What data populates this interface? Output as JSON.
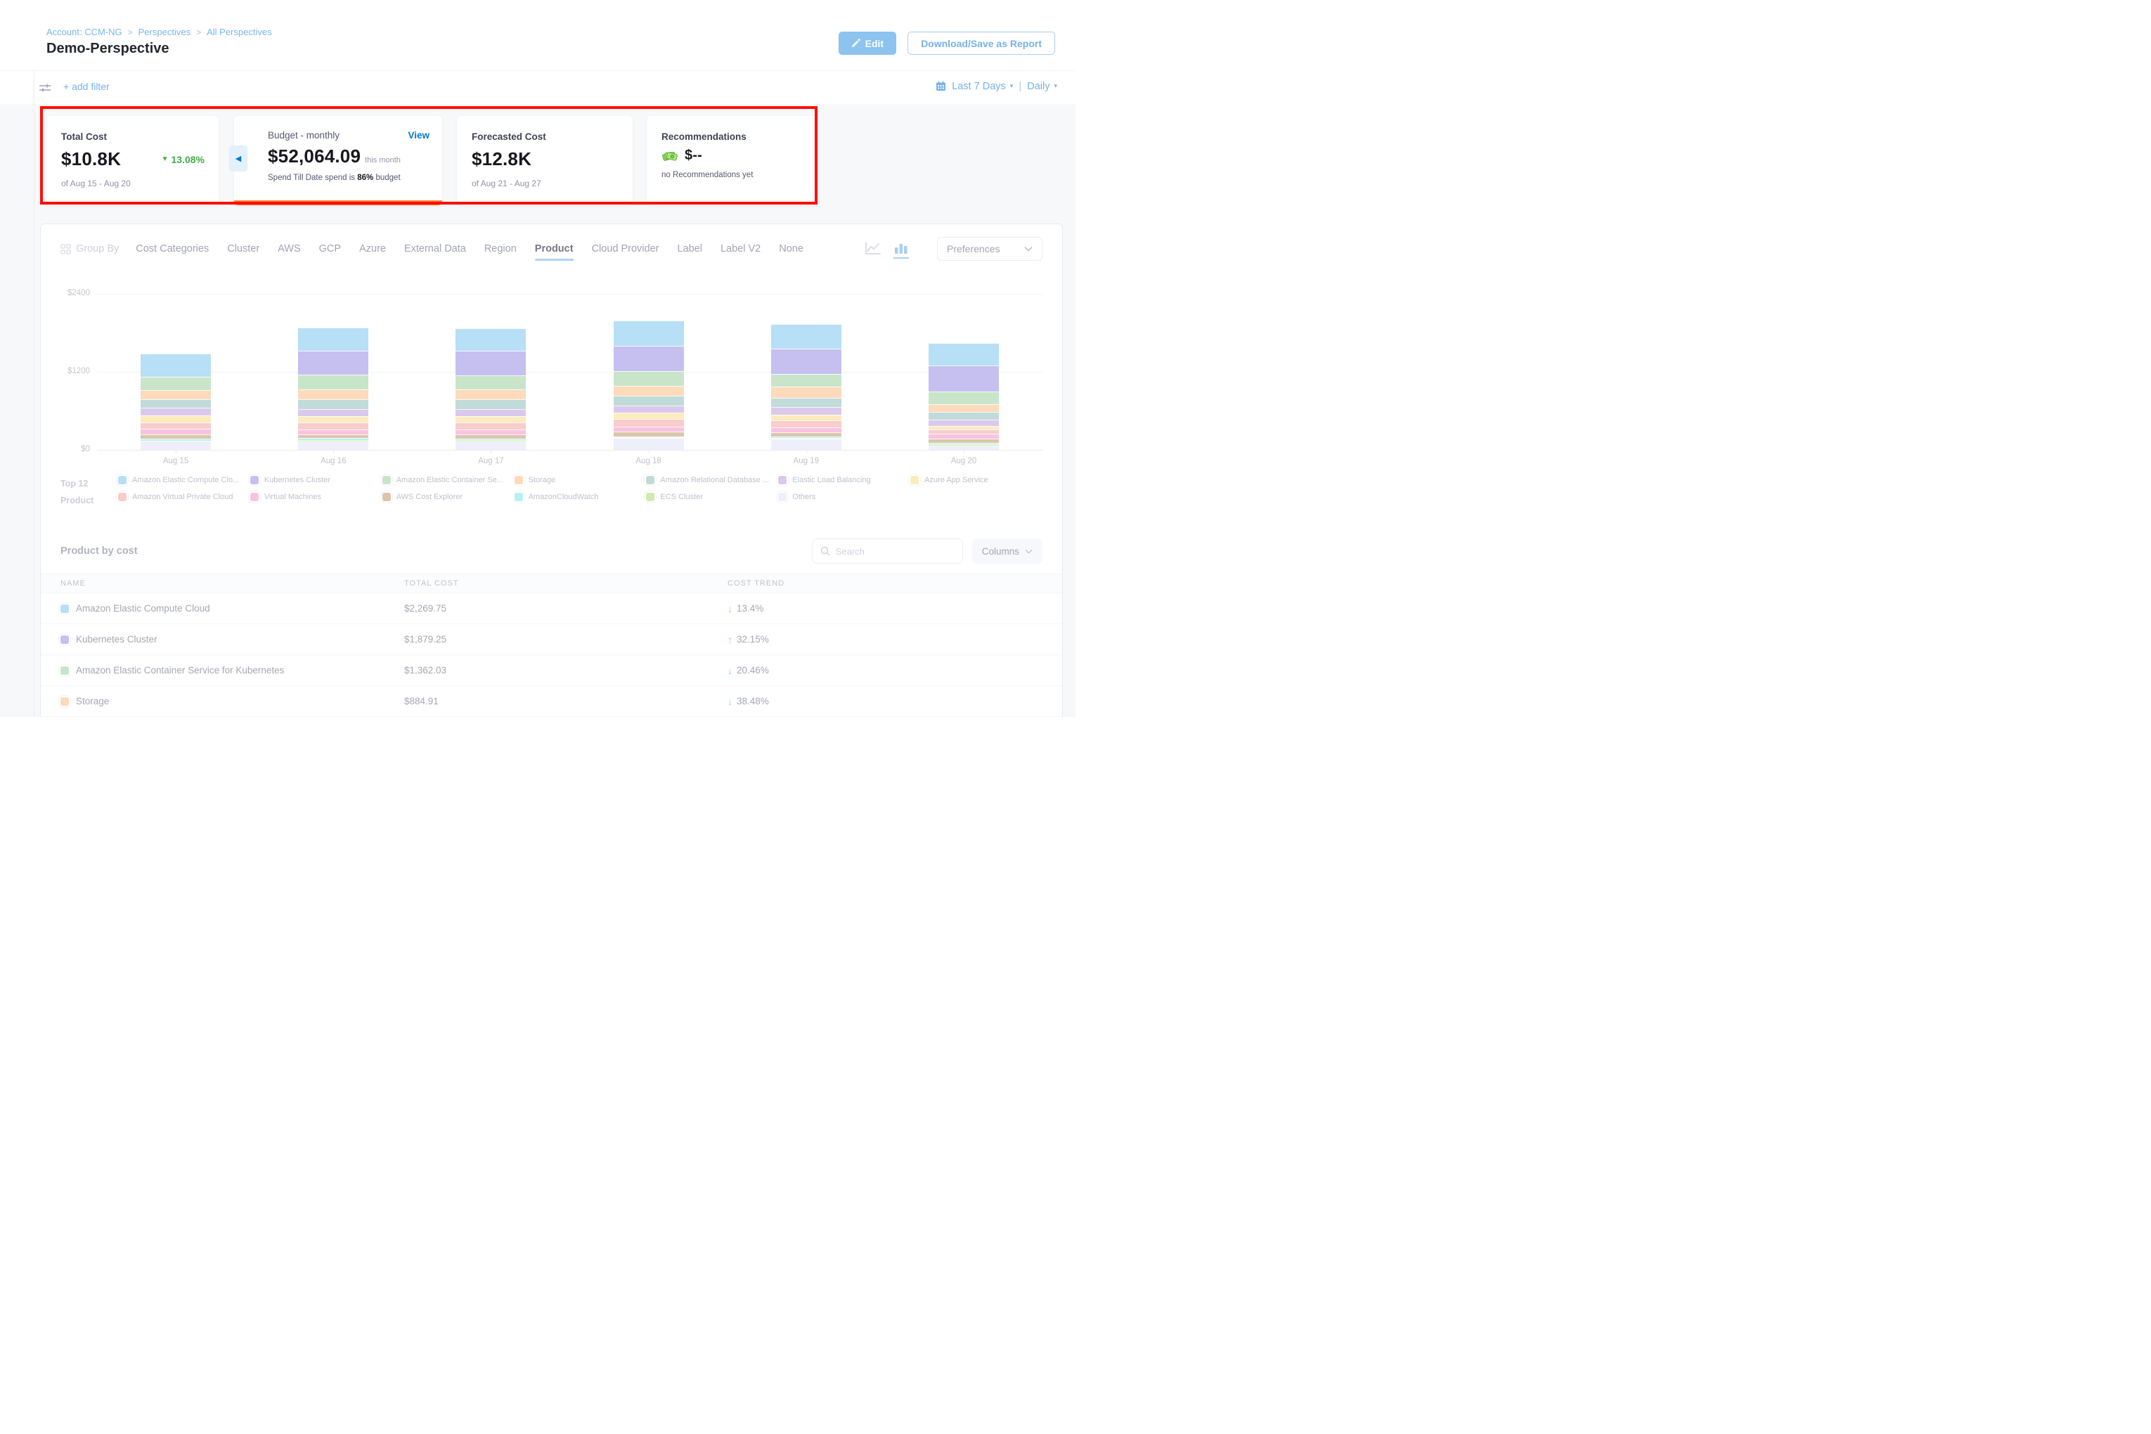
{
  "breadcrumb": {
    "items": [
      "Account: CCM-NG",
      "Perspectives",
      "All Perspectives"
    ],
    "separator": ">"
  },
  "page_title": "Demo-Perspective",
  "header_actions": {
    "edit": "Edit",
    "download": "Download/Save as Report"
  },
  "filter_bar": {
    "add_filter": "+ add filter",
    "time_range": "Last 7 Days",
    "granularity": "Daily",
    "caret": "▾",
    "pipe": "|"
  },
  "summary_cards": {
    "total_cost": {
      "label": "Total Cost",
      "value": "$10.8K",
      "trend_arrow": "▼",
      "trend": "13.08%",
      "period": "of Aug 15 - Aug 20"
    },
    "budget": {
      "label": "Budget - monthly",
      "action": "View",
      "value": "$52,064.09",
      "value_suffix": "this month",
      "status_prefix": "Spend Till Date spend is",
      "status_pct": "86%",
      "status_suffix": "budget",
      "back_arrow": "◀"
    },
    "forecasted": {
      "label": "Forecasted Cost",
      "value": "$12.8K",
      "period": "of Aug 21 - Aug 27"
    },
    "recommendations": {
      "label": "Recommendations",
      "value": "$--",
      "note": "no Recommendations yet"
    }
  },
  "group_by": {
    "label": "Group By",
    "tabs": [
      "Cost Categories",
      "Cluster",
      "AWS",
      "GCP",
      "Azure",
      "External Data",
      "Region",
      "Product",
      "Cloud Provider",
      "Label",
      "Label V2",
      "None"
    ],
    "active": "Product"
  },
  "chart_controls": {
    "preferences": "Preferences"
  },
  "chart_data": {
    "type": "bar",
    "stacked": true,
    "title": "Perspective daily cost grouped by Product",
    "categories": [
      "Aug 15",
      "Aug 16",
      "Aug 17",
      "Aug 18",
      "Aug 19",
      "Aug 20"
    ],
    "series": [
      {
        "name": "Amazon Elastic Compute Cloud",
        "color": "#8ccdf2",
        "values": [
          360,
          355,
          350,
          395,
          380,
          350
        ]
      },
      {
        "name": "Kubernetes Cluster",
        "color": "#a39ae8",
        "values": [
          0,
          370,
          375,
          380,
          385,
          400
        ]
      },
      {
        "name": "Amazon Elastic Container Service for Kubernetes",
        "color": "#a8d6ab",
        "values": [
          205,
          225,
          225,
          230,
          200,
          195
        ]
      },
      {
        "name": "Storage",
        "color": "#fcc491",
        "values": [
          135,
          155,
          150,
          150,
          165,
          120
        ]
      },
      {
        "name": "Amazon Relational Database Service",
        "color": "#9cc5c5",
        "values": [
          135,
          145,
          145,
          150,
          145,
          120
        ]
      },
      {
        "name": "Elastic Load Balancing",
        "color": "#c4a9e3",
        "values": [
          115,
          110,
          110,
          110,
          115,
          95
        ]
      },
      {
        "name": "Azure App Service",
        "color": "#fbdf94",
        "values": [
          105,
          100,
          100,
          105,
          90,
          50
        ]
      },
      {
        "name": "Amazon Virtual Private Cloud",
        "color": "#f5b0ac",
        "values": [
          105,
          110,
          110,
          110,
          105,
          70
        ]
      },
      {
        "name": "Virtual Machines",
        "color": "#f59fd0",
        "values": [
          80,
          70,
          75,
          80,
          85,
          70
        ]
      },
      {
        "name": "AWS Cost Explorer",
        "color": "#c6a477",
        "values": [
          70,
          55,
          60,
          70,
          65,
          70
        ]
      },
      {
        "name": "AmazonCloudWatch",
        "color": "#8ce8e8",
        "values": [
          30,
          30,
          25,
          20,
          20,
          20
        ]
      },
      {
        "name": "ECS Cluster",
        "color": "#b5dc7a",
        "values": [
          0,
          25,
          20,
          10,
          10,
          25
        ]
      },
      {
        "name": "Others",
        "color": "#e5e6f8",
        "values": [
          140,
          130,
          130,
          180,
          170,
          60
        ]
      }
    ],
    "ylim": [
      0,
      2400
    ],
    "yticks": [
      "$0",
      "$1200",
      "$2400"
    ],
    "grid": true,
    "legend_position": "bottom"
  },
  "legend": {
    "title_line1": "Top 12",
    "title_line2": "Product",
    "items": [
      {
        "label": "Amazon Elastic Compute Clo...",
        "color": "#8ccdf2"
      },
      {
        "label": "Kubernetes Cluster",
        "color": "#a39ae8"
      },
      {
        "label": "Amazon Elastic Container Se...",
        "color": "#a8d6ab"
      },
      {
        "label": "Storage",
        "color": "#fcc491"
      },
      {
        "label": "Amazon Relational Database ...",
        "color": "#9cc5c5"
      },
      {
        "label": "Elastic Load Balancing",
        "color": "#c4a9e3"
      },
      {
        "label": "Azure App Service",
        "color": "#fbdf94"
      },
      {
        "label": "Amazon Virtual Private Cloud",
        "color": "#f5b0ac"
      },
      {
        "label": "Virtual Machines",
        "color": "#f59fd0"
      },
      {
        "label": "AWS Cost Explorer",
        "color": "#c6a477"
      },
      {
        "label": "AmazonCloudWatch",
        "color": "#8ce8e8"
      },
      {
        "label": "ECS Cluster",
        "color": "#b5dc7a"
      },
      {
        "label": "Others",
        "color": "#e5e6f8"
      }
    ]
  },
  "table": {
    "title": "Product by cost",
    "search_placeholder": "Search",
    "columns_button": "Columns",
    "headers": [
      "NAME",
      "TOTAL COST",
      "COST TREND"
    ],
    "rows": [
      {
        "name": "Amazon Elastic Compute Cloud",
        "color": "#8ccdf2",
        "total_cost": "$2,269.75",
        "trend": "13.4%",
        "trend_direction": "down"
      },
      {
        "name": "Kubernetes Cluster",
        "color": "#a39ae8",
        "total_cost": "$1,879.25",
        "trend": "32.15%",
        "trend_direction": "up"
      },
      {
        "name": "Amazon Elastic Container Service for Kubernetes",
        "color": "#a8d6ab",
        "total_cost": "$1,362.03",
        "trend": "20.46%",
        "trend_direction": "down"
      },
      {
        "name": "Storage",
        "color": "#fcc491",
        "total_cost": "$884.91",
        "trend": "38.48%",
        "trend_direction": "down"
      }
    ],
    "arrows": {
      "down": "↓",
      "up": "↑"
    }
  }
}
